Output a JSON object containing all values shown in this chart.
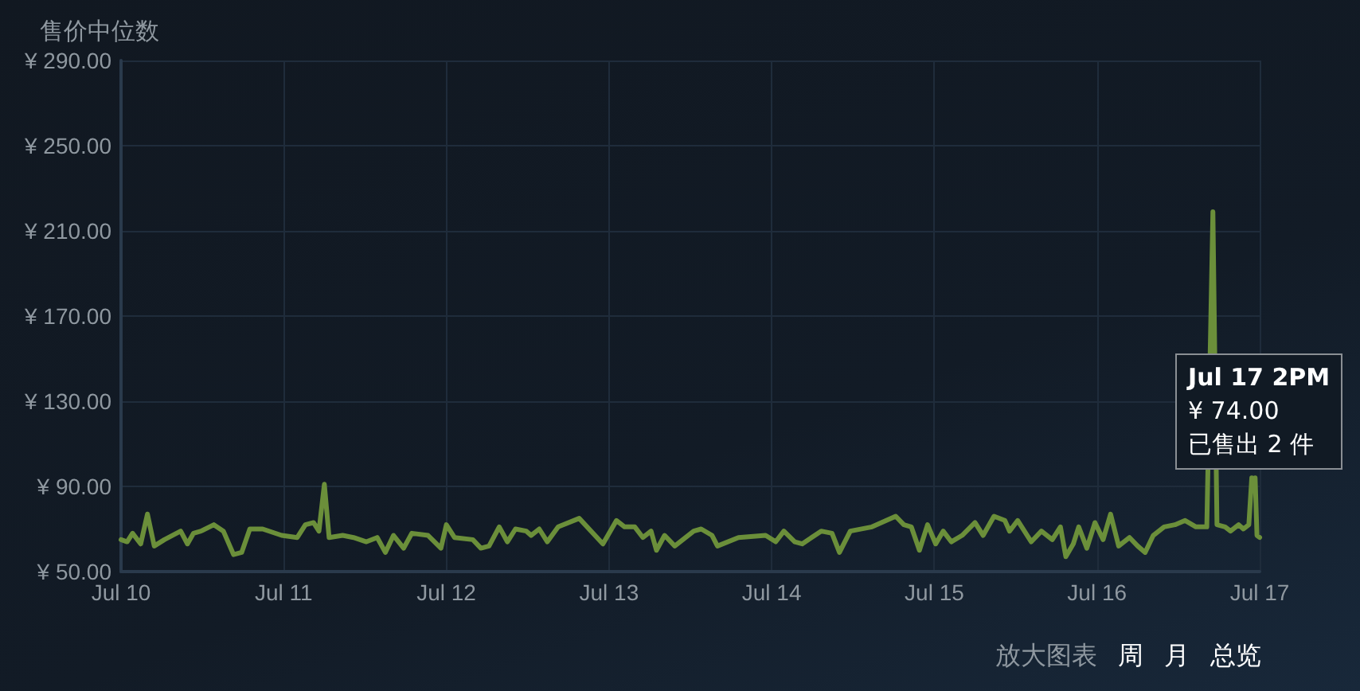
{
  "chart_data": {
    "type": "line",
    "title": "售价中位数",
    "x": [
      "--07-10T00:00",
      "--07-10T00:54",
      "--07-10T01:42",
      "--07-10T02:54",
      "--07-10T03:54",
      "--07-10T04:54",
      "--07-10T06:24",
      "--07-10T08:48",
      "--07-10T09:48",
      "--07-10T10:42",
      "--07-10T11:48",
      "--07-10T13:42",
      "--07-10T15:06",
      "--07-10T16:36",
      "--07-10T17:48",
      "--07-10T19:00",
      "--07-10T20:54",
      "--07-10T23:42",
      "--07-11T02:00",
      "--07-11T03:12",
      "--07-11T04:24",
      "--07-11T05:12",
      "--07-11T06:00",
      "--07-11T06:42",
      "--07-11T08:42",
      "--07-11T10:18",
      "--07-11T12:12",
      "--07-11T13:48",
      "--07-11T15:00",
      "--07-11T16:12",
      "--07-11T17:42",
      "--07-11T18:54",
      "--07-11T21:18",
      "--07-11T23:12",
      "--07-12T00:00",
      "--07-12T01:12",
      "--07-12T03:54",
      "--07-12T05:06",
      "--07-12T06:18",
      "--07-12T07:48",
      "--07-12T09:00",
      "--07-12T10:12",
      "--07-12T11:48",
      "--07-12T12:30",
      "--07-12T13:42",
      "--07-12T14:54",
      "--07-12T16:30",
      "--07-12T19:36",
      "--07-12T23:06",
      "--07-13T01:06",
      "--07-13T02:18",
      "--07-13T03:48",
      "--07-13T05:00",
      "--07-13T06:12",
      "--07-13T07:00",
      "--07-13T08:12",
      "--07-13T09:42",
      "--07-13T12:30",
      "--07-13T13:36",
      "--07-13T15:12",
      "--07-13T16:00",
      "--07-13T19:06",
      "--07-13T23:06",
      "--07-14T00:36",
      "--07-14T01:48",
      "--07-14T03:24",
      "--07-14T04:30",
      "--07-14T07:18",
      "--07-14T08:54",
      "--07-14T10:00",
      "--07-14T11:36",
      "--07-14T14:48",
      "--07-14T18:18",
      "--07-14T19:30",
      "--07-14T20:36",
      "--07-14T21:48",
      "--07-14T23:00",
      "--07-15T00:12",
      "--07-15T01:18",
      "--07-15T02:30",
      "--07-15T04:06",
      "--07-15T06:00",
      "--07-15T07:12",
      "--07-15T08:48",
      "--07-15T10:24",
      "--07-15T11:06",
      "--07-15T12:18",
      "--07-15T14:18",
      "--07-15T15:48",
      "--07-15T17:24",
      "--07-15T18:36",
      "--07-15T19:24",
      "--07-15T20:30",
      "--07-15T21:18",
      "--07-15T22:30",
      "--07-15T23:42",
      "--07-16T00:54",
      "--07-16T02:00",
      "--07-16T03:12",
      "--07-16T04:48",
      "--07-16T06:00",
      "--07-16T07:06",
      "--07-16T08:18",
      "--07-16T09:54",
      "--07-16T11:30",
      "--07-16T13:00",
      "--07-16T14:36",
      "--07-16T16:12",
      "--07-16T17:06",
      "--07-16T17:42",
      "--07-16T18:54",
      "--07-16T19:42",
      "--07-16T20:54",
      "--07-16T21:36",
      "--07-16T22:24",
      "--07-16T22:50",
      "--07-16T23:06",
      "--07-16T23:20",
      "--07-16T23:36",
      "--07-17T00:00"
    ],
    "series": [
      {
        "color": "#6b8f3a",
        "values": [
          65,
          64,
          68,
          63,
          77,
          62,
          65,
          69,
          63,
          68,
          69,
          72,
          69,
          58,
          59,
          70,
          70,
          67,
          66,
          72,
          73,
          69,
          91,
          66,
          67,
          66,
          64,
          66,
          59,
          67,
          61,
          68,
          67,
          61,
          72,
          66,
          65,
          61,
          62,
          71,
          64,
          70,
          69,
          67,
          70,
          64,
          71,
          75,
          63,
          74,
          71,
          71,
          66,
          69,
          60,
          67,
          62,
          69,
          70,
          67,
          62,
          66,
          67,
          64,
          69,
          64,
          63,
          69,
          68,
          59,
          69,
          71,
          76,
          72,
          71,
          60,
          72,
          63,
          69,
          64,
          67,
          73,
          67,
          76,
          74,
          69,
          74,
          64,
          69,
          65,
          71,
          57,
          63,
          71,
          61,
          73,
          65,
          77,
          62,
          66,
          62,
          59,
          67,
          71,
          72,
          74,
          71,
          71,
          219,
          72,
          71,
          69,
          72,
          70,
          72,
          94,
          null,
          94,
          67,
          66
        ]
      }
    ],
    "xlim": [
      "--07-10",
      "--07-17"
    ],
    "xticks": [
      {
        "value": "--07-10",
        "label": "Jul 10"
      },
      {
        "value": "--07-11",
        "label": "Jul 11"
      },
      {
        "value": "--07-12",
        "label": "Jul 12"
      },
      {
        "value": "--07-13",
        "label": "Jul 13"
      },
      {
        "value": "--07-14",
        "label": "Jul 14"
      },
      {
        "value": "--07-15",
        "label": "Jul 15"
      },
      {
        "value": "--07-16",
        "label": "Jul 16"
      },
      {
        "value": "--07-17",
        "label": "Jul 17"
      }
    ],
    "ylim": [
      50,
      290
    ],
    "yticks": [
      {
        "value": 50,
        "label": "¥ 50.00"
      },
      {
        "value": 90,
        "label": "¥ 90.00"
      },
      {
        "value": 130,
        "label": "¥ 130.00"
      },
      {
        "value": 170,
        "label": "¥ 170.00"
      },
      {
        "value": 210,
        "label": "¥ 210.00"
      },
      {
        "value": 250,
        "label": "¥ 250.00"
      },
      {
        "value": 290,
        "label": "¥ 290.00"
      }
    ],
    "grid": true,
    "marker": "none",
    "line_style": "solid",
    "annotations": [
      "Jul 17 2PM",
      "¥ 74.00",
      "已售出 2 件",
      "放大图表",
      "周",
      "月",
      "总览"
    ]
  }
}
